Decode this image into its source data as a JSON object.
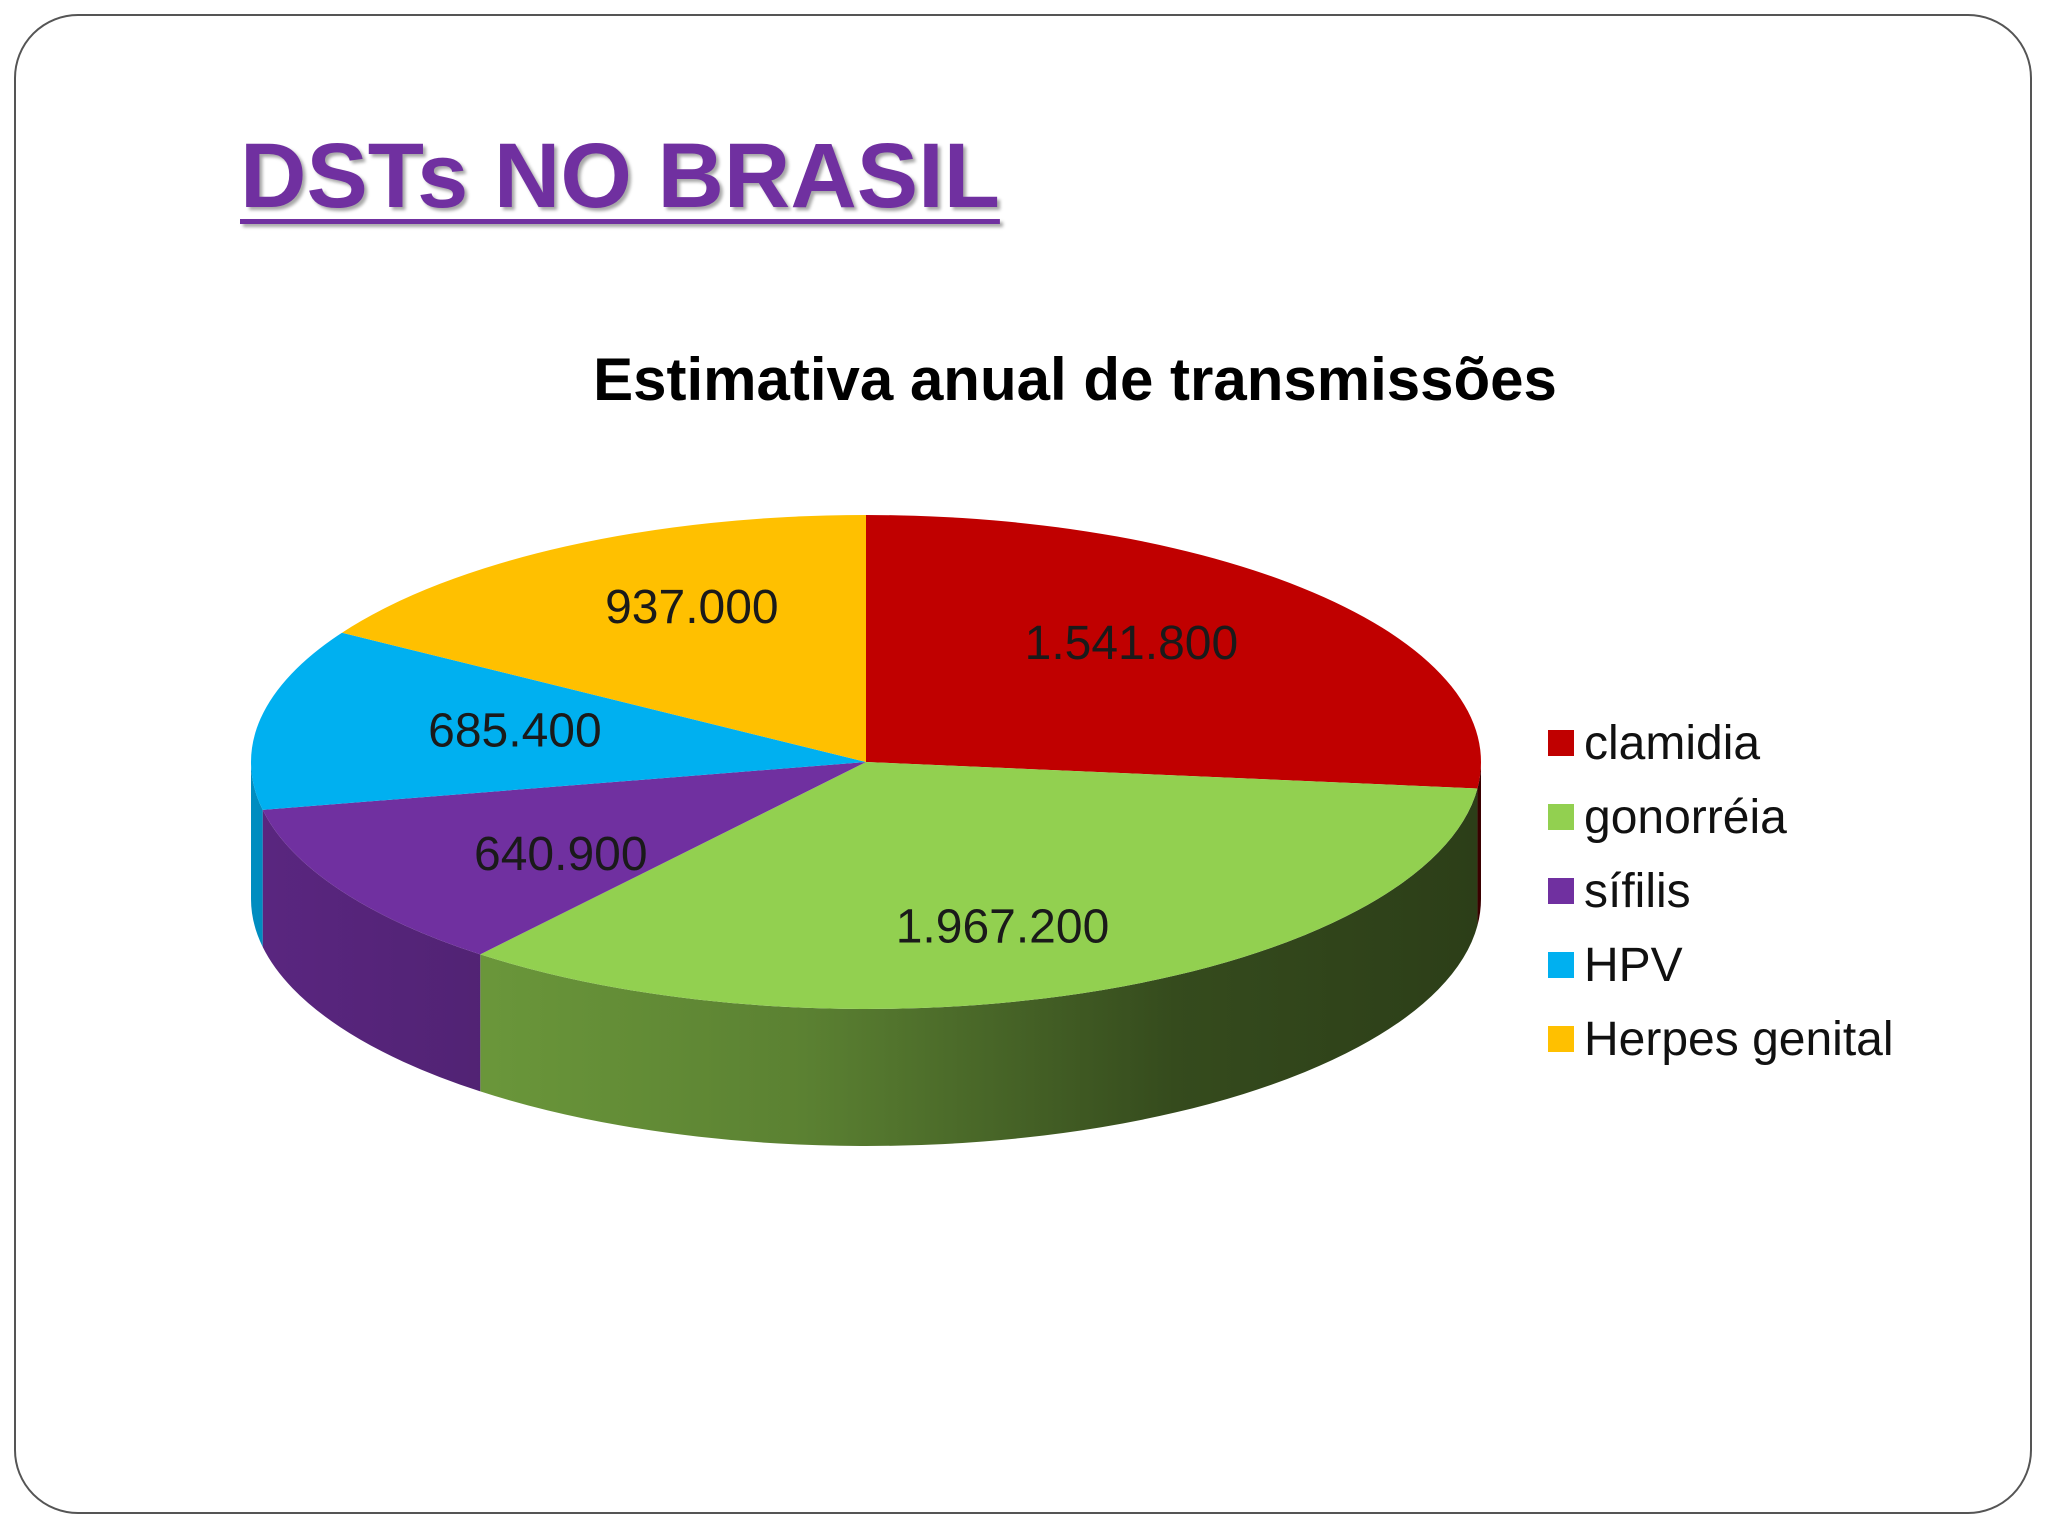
{
  "slide": {
    "title": "DSTs NO BRASIL",
    "title_color": "#7030A0"
  },
  "chart_data": {
    "type": "pie",
    "title": "Estimativa anual de transmissões",
    "style": "3d",
    "legend_position": "right",
    "series": [
      {
        "name": "clamidia",
        "value": 1541800,
        "label": "1.541.800",
        "color": "#C00000"
      },
      {
        "name": "gonorréia",
        "value": 1967200,
        "label": "1.967.200",
        "color": "#92D050"
      },
      {
        "name": "sífilis",
        "value": 640900,
        "label": "640.900",
        "color": "#7030A0"
      },
      {
        "name": "HPV",
        "value": 685400,
        "label": "685.400",
        "color": "#00B0F0"
      },
      {
        "name": "Herpes genital",
        "value": 937000,
        "label": "937.000",
        "color": "#FFC000"
      }
    ]
  }
}
